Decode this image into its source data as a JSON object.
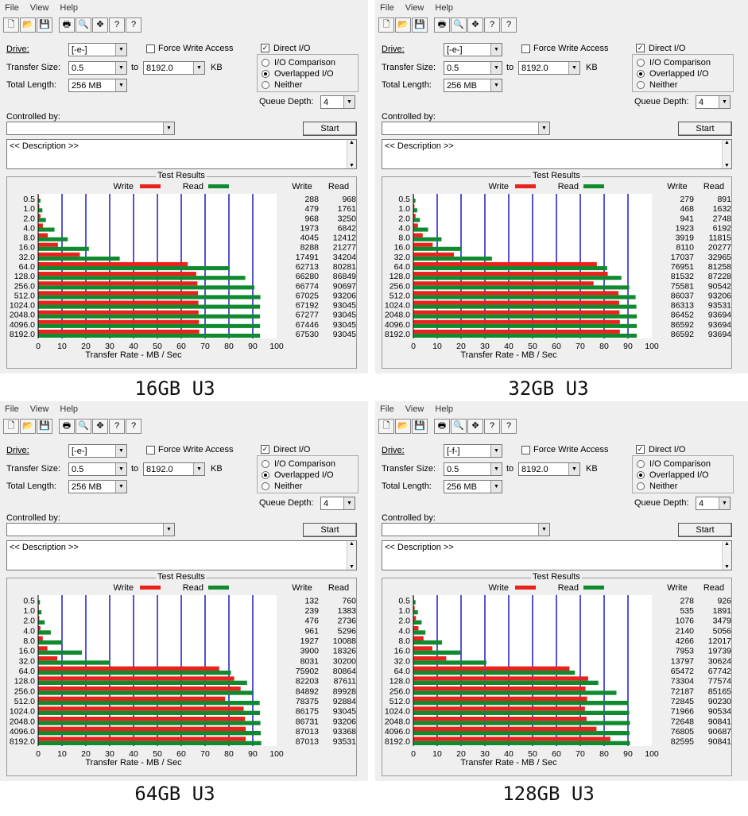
{
  "menu": {
    "file": "File",
    "view": "View",
    "help": "Help"
  },
  "toolbar_icons": [
    "new-icon",
    "open-icon",
    "save-icon",
    "print-icon",
    "print-preview-icon",
    "crosshair-icon",
    "help-icon",
    "context-help-icon"
  ],
  "labels": {
    "drive": "Drive:",
    "transfer_size": "Transfer Size:",
    "to": "to",
    "kb": "KB",
    "total_length": "Total Length:",
    "force_write": "Force Write Access",
    "direct_io": "Direct I/O",
    "io_comparison": "I/O Comparison",
    "overlapped_io": "Overlapped I/O",
    "neither": "Neither",
    "queue_depth": "Queue Depth:",
    "controlled_by": "Controlled by:",
    "start": "Start",
    "description": "<< Description >>",
    "test_results": "Test Results",
    "write": "Write",
    "read": "Read",
    "xlabel": "Transfer Rate - MB / Sec",
    "check": "✓",
    "arrow_down": "▼",
    "arrow_up": "▲"
  },
  "colors": {
    "write": "#e8221c",
    "read": "#0f8a2e",
    "grid": "#1b1bc7"
  },
  "chart_data": [
    {
      "type": "bar",
      "title": "16GB U3",
      "drive": "[-e-]",
      "transfer_from": "0.5",
      "transfer_to": "8192.0",
      "total_length": "256 MB",
      "queue_depth": "4",
      "categories": [
        "0.5",
        "1.0",
        "2.0",
        "4.0",
        "8.0",
        "16.0",
        "32.0",
        "64.0",
        "128.0",
        "256.0",
        "512.0",
        "1024.0",
        "2048.0",
        "4096.0",
        "8192.0"
      ],
      "series": [
        {
          "name": "Write",
          "values": [
            288,
            479,
            968,
            1973,
            4045,
            8288,
            17491,
            62713,
            66280,
            66774,
            67025,
            67192,
            67277,
            67446,
            67530
          ]
        },
        {
          "name": "Read",
          "values": [
            968,
            1761,
            3250,
            6842,
            12412,
            21277,
            34204,
            80281,
            86849,
            90697,
            93206,
            93045,
            93045,
            93045,
            93045
          ]
        }
      ],
      "xticks": [
        "0",
        "10",
        "20",
        "30",
        "40",
        "50",
        "60",
        "70",
        "80",
        "90",
        "100"
      ],
      "xlim": [
        0,
        100
      ],
      "xlabel": "Transfer Rate - MB / Sec"
    },
    {
      "type": "bar",
      "title": "32GB U3",
      "drive": "[-e-]",
      "transfer_from": "0.5",
      "transfer_to": "8192.0",
      "total_length": "256 MB",
      "queue_depth": "4",
      "categories": [
        "0.5",
        "1.0",
        "2.0",
        "4.0",
        "8.0",
        "16.0",
        "32.0",
        "64.0",
        "128.0",
        "256.0",
        "512.0",
        "1024.0",
        "2048.0",
        "4096.0",
        "8192.0"
      ],
      "series": [
        {
          "name": "Write",
          "values": [
            279,
            468,
            941,
            1923,
            3919,
            8110,
            17037,
            76951,
            81532,
            75581,
            86037,
            86313,
            86452,
            86592,
            86592
          ]
        },
        {
          "name": "Read",
          "values": [
            891,
            1632,
            2748,
            6192,
            11815,
            20277,
            32965,
            81258,
            87228,
            90542,
            93206,
            93531,
            93694,
            93694,
            93694
          ]
        }
      ],
      "xticks": [
        "0",
        "10",
        "20",
        "30",
        "40",
        "50",
        "60",
        "70",
        "80",
        "90",
        "100"
      ],
      "xlim": [
        0,
        100
      ],
      "xlabel": "Transfer Rate - MB / Sec"
    },
    {
      "type": "bar",
      "title": "64GB U3",
      "drive": "[-e-]",
      "transfer_from": "0.5",
      "transfer_to": "8192.0",
      "total_length": "256 MB",
      "queue_depth": "4",
      "categories": [
        "0.5",
        "1.0",
        "2.0",
        "4.0",
        "8.0",
        "16.0",
        "32.0",
        "64.0",
        "128.0",
        "256.0",
        "512.0",
        "1024.0",
        "2048.0",
        "4096.0",
        "8192.0"
      ],
      "series": [
        {
          "name": "Write",
          "values": [
            132,
            239,
            476,
            961,
            1927,
            3900,
            8031,
            75902,
            82203,
            84892,
            78375,
            86175,
            86731,
            87013,
            87013
          ]
        },
        {
          "name": "Read",
          "values": [
            760,
            1383,
            2736,
            5296,
            10088,
            18326,
            30200,
            80864,
            87611,
            89928,
            92884,
            93045,
            93206,
            93368,
            93531
          ]
        }
      ],
      "xticks": [
        "0",
        "10",
        "20",
        "30",
        "40",
        "50",
        "60",
        "70",
        "80",
        "90",
        "100"
      ],
      "xlim": [
        0,
        100
      ],
      "xlabel": "Transfer Rate - MB / Sec"
    },
    {
      "type": "bar",
      "title": "128GB U3",
      "drive": "[-f-]",
      "transfer_from": "0.5",
      "transfer_to": "8192.0",
      "total_length": "256 MB",
      "queue_depth": "4",
      "categories": [
        "0.5",
        "1.0",
        "2.0",
        "4.0",
        "8.0",
        "16.0",
        "32.0",
        "64.0",
        "128.0",
        "256.0",
        "512.0",
        "1024.0",
        "2048.0",
        "4096.0",
        "8192.0"
      ],
      "series": [
        {
          "name": "Write",
          "values": [
            278,
            535,
            1076,
            2140,
            4266,
            7953,
            13797,
            65472,
            73304,
            72187,
            72845,
            71966,
            72648,
            76805,
            82595
          ]
        },
        {
          "name": "Read",
          "values": [
            926,
            1891,
            3479,
            5056,
            12017,
            19739,
            30624,
            67742,
            77574,
            85165,
            90230,
            90534,
            90841,
            90687,
            90841
          ]
        }
      ],
      "xticks": [
        "0",
        "10",
        "20",
        "30",
        "40",
        "50",
        "60",
        "70",
        "80",
        "90",
        "100"
      ],
      "xlim": [
        0,
        100
      ],
      "xlabel": "Transfer Rate - MB / Sec"
    }
  ]
}
